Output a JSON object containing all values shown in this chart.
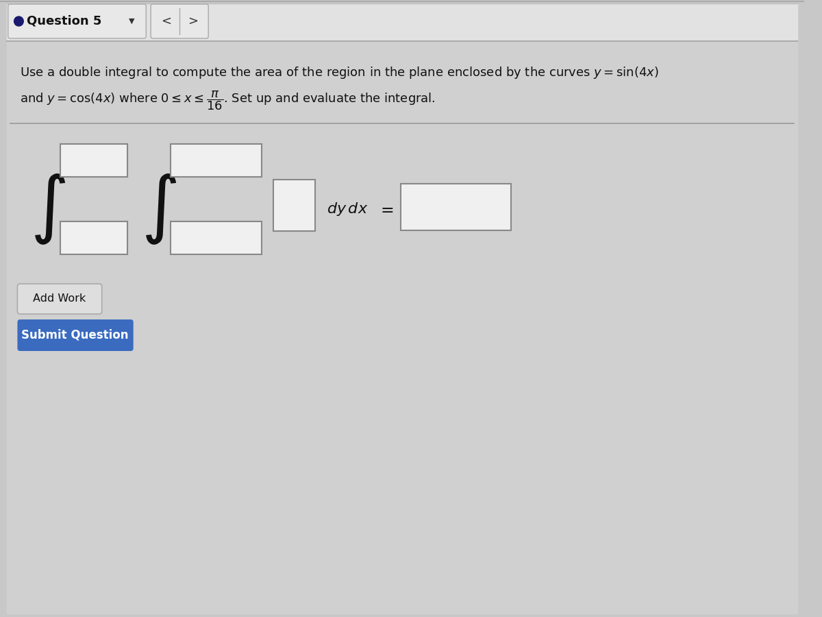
{
  "bg_color": "#c8c8c8",
  "content_bg": "#d8d8d8",
  "header_bg": "#e2e2e2",
  "header_border_top": "#aaaaaa",
  "header_border_bottom": "#aaaaaa",
  "title_text": "Question 5",
  "bullet_color": "#1a1a6e",
  "nav_button_bg": "#e0e0e0",
  "nav_button_border": "#aaaaaa",
  "problem_line1": "Use a double integral to compute the area of the region in the plane enclosed by the curves $y = \\sin(4x)$",
  "problem_line2": "and $y = \\cos(4x)$ where $0 \\leq x \\leq \\dfrac{\\pi}{16}$. Set up and evaluate the integral.",
  "add_work_text": "Add Work",
  "submit_text": "Submit Question",
  "submit_bg": "#3a6bbf",
  "submit_text_color": "#ffffff",
  "box_border": "#888888",
  "box_bg": "#f0f0f0",
  "separator_color": "#999999",
  "text_color": "#111111",
  "content_area_bg": "#d4d4d4"
}
